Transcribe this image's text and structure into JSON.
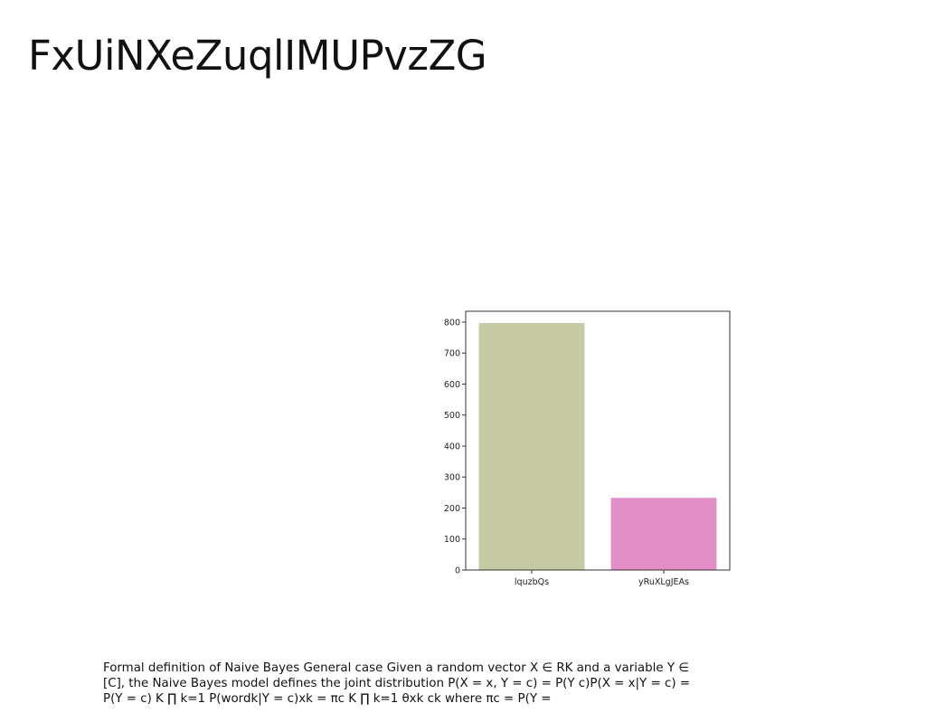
{
  "slide": {
    "title": "FxUiNXeZuqlIMUPvzZG",
    "caption": "Formal definition of Naive Bayes General case Given a random vector X ∈ RK and a variable Y ∈ [C], the Naive Bayes model defines the joint distribution P(X = x, Y = c) = P(Y c)P(X = x|Y = c) = P(Y = c) K ∏ k=1 P(wordk|Y = c)xk = πc K ∏ k=1 θxk ck where πc = P(Y ="
  },
  "chart_data": {
    "type": "bar",
    "categories": [
      "lquzbQs",
      "yRuXLgJEAs"
    ],
    "values": [
      797,
      233
    ],
    "colors": [
      "#c5c9a4",
      "#e28fc7"
    ],
    "ylim": [
      0,
      835
    ],
    "yticks": [
      0,
      100,
      200,
      300,
      400,
      500,
      600,
      700,
      800
    ],
    "grid": false,
    "legend": "none"
  }
}
